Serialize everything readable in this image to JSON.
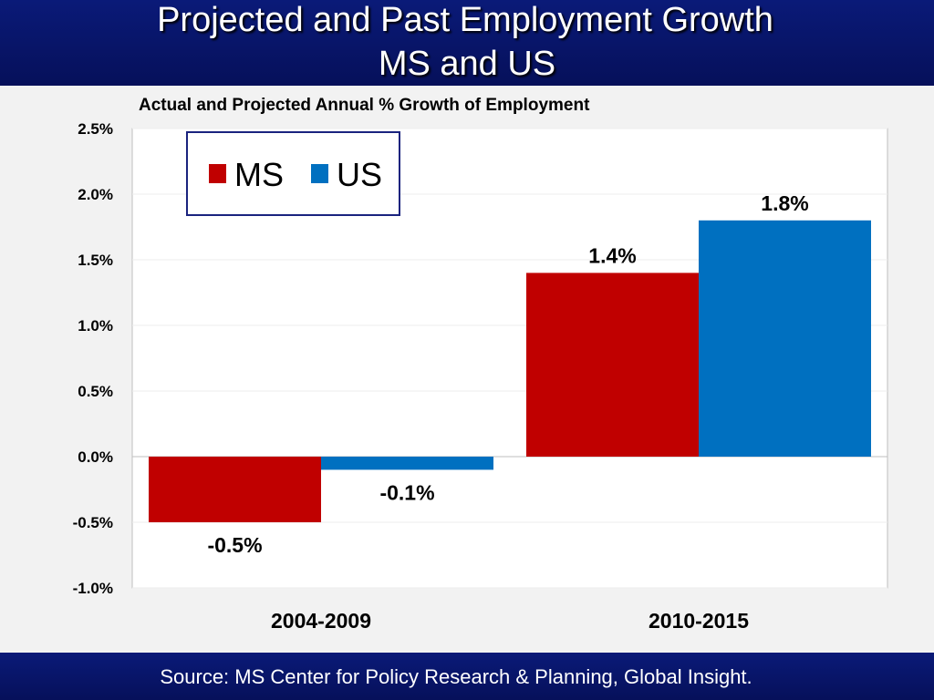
{
  "slide": {
    "title_line1": "Projected and Past Employment Growth",
    "title_line2": "MS and US",
    "footer_source": "Source: MS Center for Policy Research & Planning, Global  Insight."
  },
  "colors": {
    "header_bg": "#0a1a78",
    "ms": "#c00000",
    "us": "#0070c0",
    "legend_border": "#1a237e"
  },
  "chart_data": {
    "type": "bar",
    "title": "Actual and Projected Annual % Growth of Employment",
    "categories": [
      "2004-2009",
      "2010-2015"
    ],
    "series": [
      {
        "name": "MS",
        "values": [
          -0.5,
          1.4
        ],
        "labels": [
          "-0.5%",
          "1.4%"
        ],
        "color": "#c00000"
      },
      {
        "name": "US",
        "values": [
          -0.1,
          1.8
        ],
        "labels": [
          "-0.1%",
          "1.8%"
        ],
        "color": "#0070c0"
      }
    ],
    "ylim": [
      -1.0,
      2.5
    ],
    "yticks": [
      2.5,
      2.0,
      1.5,
      1.0,
      0.5,
      0.0,
      -0.5,
      -1.0
    ],
    "ytick_labels": [
      "2.5%",
      "2.0%",
      "1.5%",
      "1.0%",
      "0.5%",
      "0.0%",
      "-0.5%",
      "-1.0%"
    ],
    "xlabel": "",
    "ylabel": "",
    "grid": true,
    "legend_position": "top-left"
  }
}
